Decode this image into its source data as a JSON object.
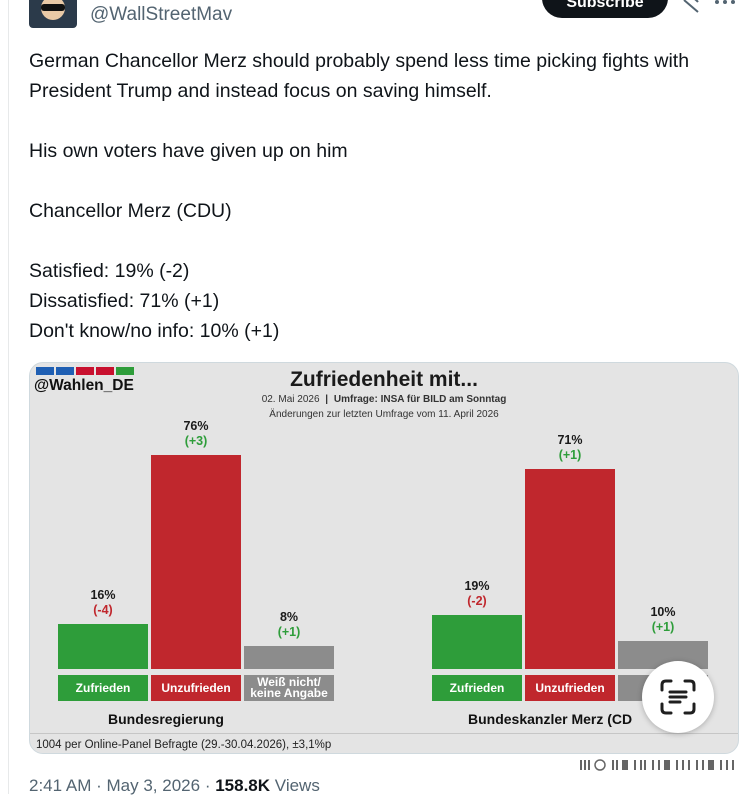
{
  "header": {
    "handle": "@WallStreetMav",
    "subscribe_label": "Subscribe"
  },
  "tweet": {
    "lines": [
      "German Chancellor Merz should probably spend less time picking fights with President Trump and instead focus on saving himself.",
      "His own voters have given up on him",
      "Chancellor Merz (CDU)",
      "Satisfied: 19% (-2)",
      "Dissatisfied: 71% (+1)",
      "Don't know/no info: 10% (+1)"
    ]
  },
  "image": {
    "brand": "@Wahlen_DE",
    "logo_colors": [
      "#1f5fb3",
      "#1f5fb3",
      "#c8102e",
      "#c8102e",
      "#2e9d3a"
    ],
    "title": "Zufriedenheit mit...",
    "date": "02. Mai 2026",
    "sep": "|",
    "survey": "Umfrage: INSA für BILD am Sonntag",
    "changes_note": "Änderungen zur letzten Umfrage vom 11. April 2026",
    "footnote": "1004 per Online-Panel Befragte (29.-30.04.2026), ±3,1%p"
  },
  "chart_data": {
    "type": "bar",
    "title": "Zufriedenheit mit...",
    "categories": [
      "Zufrieden",
      "Unzufrieden",
      "Weiß nicht/ keine Angabe"
    ],
    "category_lines": [
      [
        "Zufrieden"
      ],
      [
        "Unzufrieden"
      ],
      [
        "Weiß nicht/",
        "keine Angabe"
      ]
    ],
    "category_labels_right": [
      [
        "Zufrieden"
      ],
      [
        "Unzufrieden"
      ],
      [
        "We",
        "kei"
      ]
    ],
    "colors": [
      "#2e9d3a",
      "#c0272d",
      "#8c8c8c"
    ],
    "groups": [
      {
        "name": "Bundesregierung",
        "values": [
          16,
          76,
          8
        ],
        "value_labels": [
          "16%",
          "76%",
          "8%"
        ],
        "changes": [
          "(-4)",
          "(+3)",
          "(+1)"
        ]
      },
      {
        "name": "Bundeskanzler Merz (CD",
        "values": [
          19,
          71,
          10
        ],
        "value_labels": [
          "19%",
          "71%",
          "10%"
        ],
        "changes": [
          "(-2)",
          "(+1)",
          "(+1)"
        ]
      }
    ],
    "change_colors": [
      "#c0272d",
      "#2e9d3a",
      "#2e9d3a"
    ]
  },
  "footer": {
    "time": "2:41 AM",
    "dot": "·",
    "date": "May 3, 2026",
    "views_count": "158.8K",
    "views_label": "Views"
  }
}
